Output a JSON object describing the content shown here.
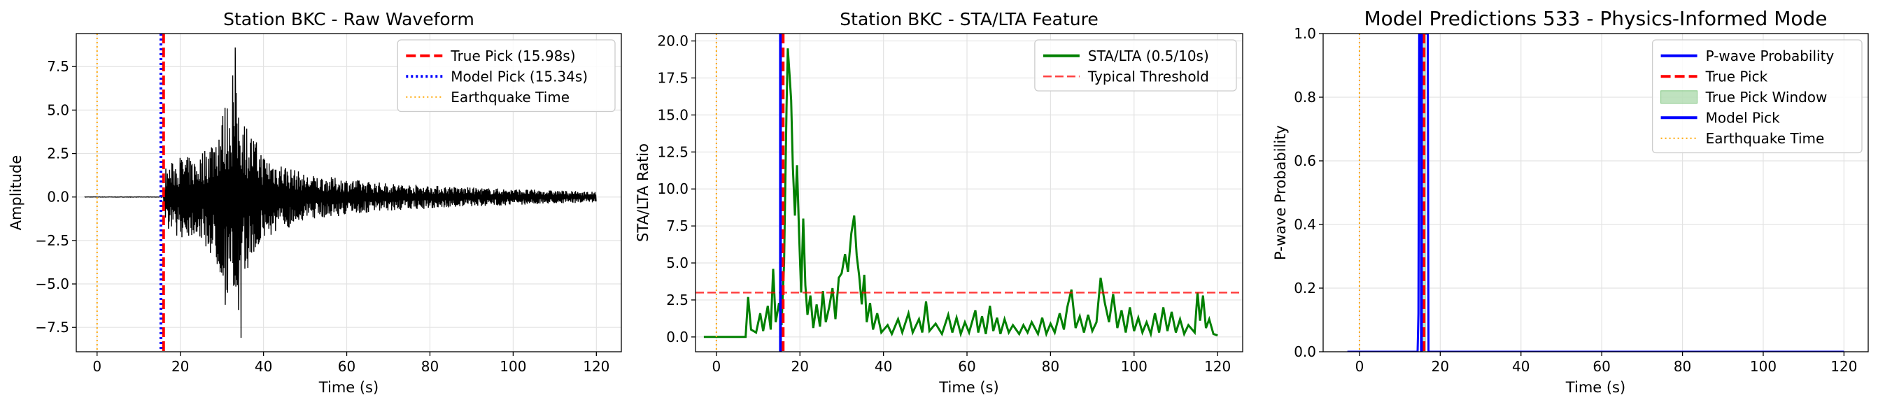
{
  "chart_data": [
    {
      "type": "line",
      "title": "Station BKC - Raw Waveform",
      "xlabel": "Time (s)",
      "ylabel": "Amplitude",
      "xlim": [
        -5,
        126
      ],
      "ylim": [
        -8.9,
        9.4
      ],
      "xticks": [
        0,
        20,
        40,
        60,
        80,
        100,
        120
      ],
      "yticks": [
        -7.5,
        -5.0,
        -2.5,
        0.0,
        2.5,
        5.0,
        7.5
      ],
      "ytick_labels": [
        "−7.5",
        "−5.0",
        "−2.5",
        "0.0",
        "2.5",
        "5.0",
        "7.5"
      ],
      "grid": true,
      "legend_position": "top-right",
      "series": [
        {
          "name": "True Pick (15.98s)",
          "kind": "vline",
          "x": 15.98,
          "color": "#ff0000",
          "style": "dashed"
        },
        {
          "name": "Model Pick (15.34s)",
          "kind": "vline",
          "x": 15.34,
          "color": "#0000ff",
          "style": "dotted"
        },
        {
          "name": "Earthquake Time",
          "kind": "vline",
          "x": 0,
          "color": "#ffa500",
          "style": "dotted-thin"
        },
        {
          "name": "",
          "kind": "waveform",
          "x_start": -3,
          "x_end": 120,
          "color": "#000000",
          "onset": 16.0,
          "envelope": [
            [
              16,
              1.6
            ],
            [
              20,
              2.4
            ],
            [
              24,
              2.2
            ],
            [
              28,
              3.6
            ],
            [
              31,
              5.5
            ],
            [
              33,
              6.5
            ],
            [
              36,
              4.2
            ],
            [
              40,
              2.5
            ],
            [
              50,
              1.3
            ],
            [
              70,
              0.8
            ],
            [
              90,
              0.55
            ],
            [
              120,
              0.3
            ]
          ],
          "spikes": [
            [
              33.2,
              8.6
            ],
            [
              34.6,
              -8.1
            ],
            [
              30.8,
              -6.2
            ],
            [
              32.6,
              7.0
            ],
            [
              34.0,
              -6.5
            ]
          ]
        }
      ]
    },
    {
      "type": "line",
      "title": "Station BKC - STA/LTA Feature",
      "xlabel": "Time (s)",
      "ylabel": "STA/LTA Ratio",
      "xlim": [
        -5,
        126
      ],
      "ylim": [
        -1.0,
        20.5
      ],
      "xticks": [
        0,
        20,
        40,
        60,
        80,
        100,
        120
      ],
      "yticks": [
        0.0,
        2.5,
        5.0,
        7.5,
        10.0,
        12.5,
        15.0,
        17.5,
        20.0
      ],
      "ytick_labels": [
        "0.0",
        "2.5",
        "5.0",
        "7.5",
        "10.0",
        "12.5",
        "15.0",
        "17.5",
        "20.0"
      ],
      "grid": true,
      "legend_position": "top-right",
      "series": [
        {
          "name": "STA/LTA (0.5/10s)",
          "kind": "line",
          "color": "#008000",
          "points": [
            [
              -3,
              0
            ],
            [
              7,
              0
            ],
            [
              7.6,
              2.7
            ],
            [
              8.3,
              0.5
            ],
            [
              9.5,
              0.3
            ],
            [
              10.5,
              1.6
            ],
            [
              11.2,
              0.4
            ],
            [
              12.3,
              2.1
            ],
            [
              13,
              0.5
            ],
            [
              13.6,
              4.6
            ],
            [
              14.2,
              1.0
            ],
            [
              15,
              2.3
            ],
            [
              15.6,
              0.8
            ],
            [
              16.2,
              5.0
            ],
            [
              16.8,
              15.5
            ],
            [
              17.1,
              19.5
            ],
            [
              17.5,
              17.8
            ],
            [
              17.9,
              16.0
            ],
            [
              18.3,
              11.5
            ],
            [
              18.8,
              8.2
            ],
            [
              19.3,
              11.6
            ],
            [
              19.8,
              7.0
            ],
            [
              20.3,
              3.0
            ],
            [
              20.8,
              8.0
            ],
            [
              21.3,
              3.5
            ],
            [
              21.8,
              1.5
            ],
            [
              22.5,
              2.8
            ],
            [
              23.2,
              0.6
            ],
            [
              24,
              2.2
            ],
            [
              24.8,
              0.7
            ],
            [
              25.5,
              3.1
            ],
            [
              26.2,
              1.0
            ],
            [
              27,
              2.0
            ],
            [
              27.8,
              3.3
            ],
            [
              28.5,
              1.2
            ],
            [
              29.3,
              4.0
            ],
            [
              30,
              4.3
            ],
            [
              30.8,
              5.6
            ],
            [
              31.5,
              4.4
            ],
            [
              32.3,
              7.0
            ],
            [
              33,
              8.2
            ],
            [
              33.6,
              5.5
            ],
            [
              34.2,
              4.1
            ],
            [
              34.8,
              2.2
            ],
            [
              35.4,
              4.2
            ],
            [
              36,
              1.0
            ],
            [
              36.8,
              2.3
            ],
            [
              37.5,
              0.5
            ],
            [
              38.5,
              1.6
            ],
            [
              39.5,
              0.3
            ],
            [
              41,
              0.8
            ],
            [
              42,
              0.2
            ],
            [
              43.5,
              1.2
            ],
            [
              44.5,
              0.3
            ],
            [
              46,
              1.6
            ],
            [
              47,
              0.3
            ],
            [
              48.5,
              1.2
            ],
            [
              49.3,
              0.3
            ],
            [
              50.2,
              2.4
            ],
            [
              51,
              0.4
            ],
            [
              52.5,
              0.9
            ],
            [
              54,
              0.2
            ],
            [
              55.5,
              1.5
            ],
            [
              56.5,
              0.3
            ],
            [
              57.5,
              1.3
            ],
            [
              58.5,
              0.2
            ],
            [
              59.5,
              1.0
            ],
            [
              60.5,
              0.3
            ],
            [
              62,
              1.8
            ],
            [
              62.7,
              0.3
            ],
            [
              63.6,
              1.4
            ],
            [
              64.5,
              0.2
            ],
            [
              65.5,
              2.1
            ],
            [
              66.3,
              0.4
            ],
            [
              67.2,
              1.3
            ],
            [
              68,
              0.2
            ],
            [
              69,
              1.2
            ],
            [
              70,
              0.3
            ],
            [
              71,
              0.8
            ],
            [
              72.5,
              0.2
            ],
            [
              73.5,
              0.8
            ],
            [
              74.5,
              0.3
            ],
            [
              75.5,
              1.0
            ],
            [
              77,
              0.2
            ],
            [
              78,
              1.3
            ],
            [
              79,
              0.2
            ],
            [
              80,
              0.9
            ],
            [
              81,
              0.3
            ],
            [
              82.2,
              1.6
            ],
            [
              83.2,
              0.5
            ],
            [
              84,
              2.0
            ],
            [
              85,
              3.2
            ],
            [
              86,
              0.6
            ],
            [
              87,
              1.4
            ],
            [
              88,
              0.3
            ],
            [
              89,
              1.5
            ],
            [
              90,
              0.4
            ],
            [
              91,
              1.0
            ],
            [
              92,
              4.0
            ],
            [
              93,
              2.3
            ],
            [
              94,
              1.0
            ],
            [
              95,
              2.9
            ],
            [
              96,
              0.6
            ],
            [
              97,
              1.8
            ],
            [
              98,
              0.3
            ],
            [
              99,
              2.0
            ],
            [
              100,
              0.4
            ],
            [
              101,
              1.3
            ],
            [
              102,
              0.3
            ],
            [
              103,
              1.0
            ],
            [
              104,
              0.2
            ],
            [
              105,
              1.6
            ],
            [
              106,
              0.3
            ],
            [
              107,
              2.0
            ],
            [
              108,
              0.4
            ],
            [
              109,
              1.7
            ],
            [
              110,
              0.3
            ],
            [
              111,
              1.2
            ],
            [
              112,
              0.2
            ],
            [
              113,
              0.8
            ],
            [
              114.5,
              0.3
            ],
            [
              115.2,
              3.0
            ],
            [
              115.8,
              1.1
            ],
            [
              116.5,
              2.8
            ],
            [
              117.2,
              0.6
            ],
            [
              118,
              1.2
            ],
            [
              119,
              0.2
            ],
            [
              120,
              0.1
            ]
          ]
        },
        {
          "name": "Typical Threshold",
          "kind": "hline",
          "y": 3.0,
          "color": "#ff0000",
          "style": "dashed"
        },
        {
          "name": "",
          "kind": "vline",
          "x": 15.34,
          "color": "#0000ff",
          "style": "solid"
        },
        {
          "name": "",
          "kind": "vline",
          "x": 15.98,
          "color": "#ff0000",
          "style": "dashed"
        },
        {
          "name": "",
          "kind": "vline",
          "x": 0,
          "color": "#ffa500",
          "style": "dotted-thin"
        }
      ]
    },
    {
      "type": "line",
      "title": "Model Predictions 533 - Physics-Informed Mode",
      "xlabel": "Time (s)",
      "ylabel": "P-wave Probability",
      "xlim": [
        -9,
        126
      ],
      "ylim": [
        0,
        1
      ],
      "xticks": [
        0,
        20,
        40,
        60,
        80,
        100,
        120
      ],
      "yticks": [
        0.0,
        0.2,
        0.4,
        0.6,
        0.8,
        1.0
      ],
      "ytick_labels": [
        "0.0",
        "0.2",
        "0.4",
        "0.6",
        "0.8",
        "1.0"
      ],
      "grid": true,
      "legend_position": "top-right",
      "series": [
        {
          "name": "P-wave Probability",
          "kind": "line",
          "color": "#0000ff",
          "points": [
            [
              -3,
              0
            ],
            [
              14.4,
              0
            ],
            [
              14.6,
              0.12
            ],
            [
              14.8,
              1.0
            ],
            [
              16.9,
              1.0
            ],
            [
              17.1,
              0
            ],
            [
              120,
              0
            ]
          ]
        },
        {
          "name": "True Pick",
          "kind": "vline",
          "x": 15.98,
          "color": "#ff0000",
          "style": "dashed"
        },
        {
          "name": "True Pick Window",
          "kind": "band",
          "x0": 15.48,
          "x1": 16.48,
          "color": "#2ca02c"
        },
        {
          "name": "Model Pick",
          "kind": "vline",
          "x": 15.34,
          "color": "#0000ff",
          "style": "solid"
        },
        {
          "name": "Earthquake Time",
          "kind": "vline",
          "x": 0,
          "color": "#ffa500",
          "style": "dotted-thin"
        }
      ]
    }
  ]
}
